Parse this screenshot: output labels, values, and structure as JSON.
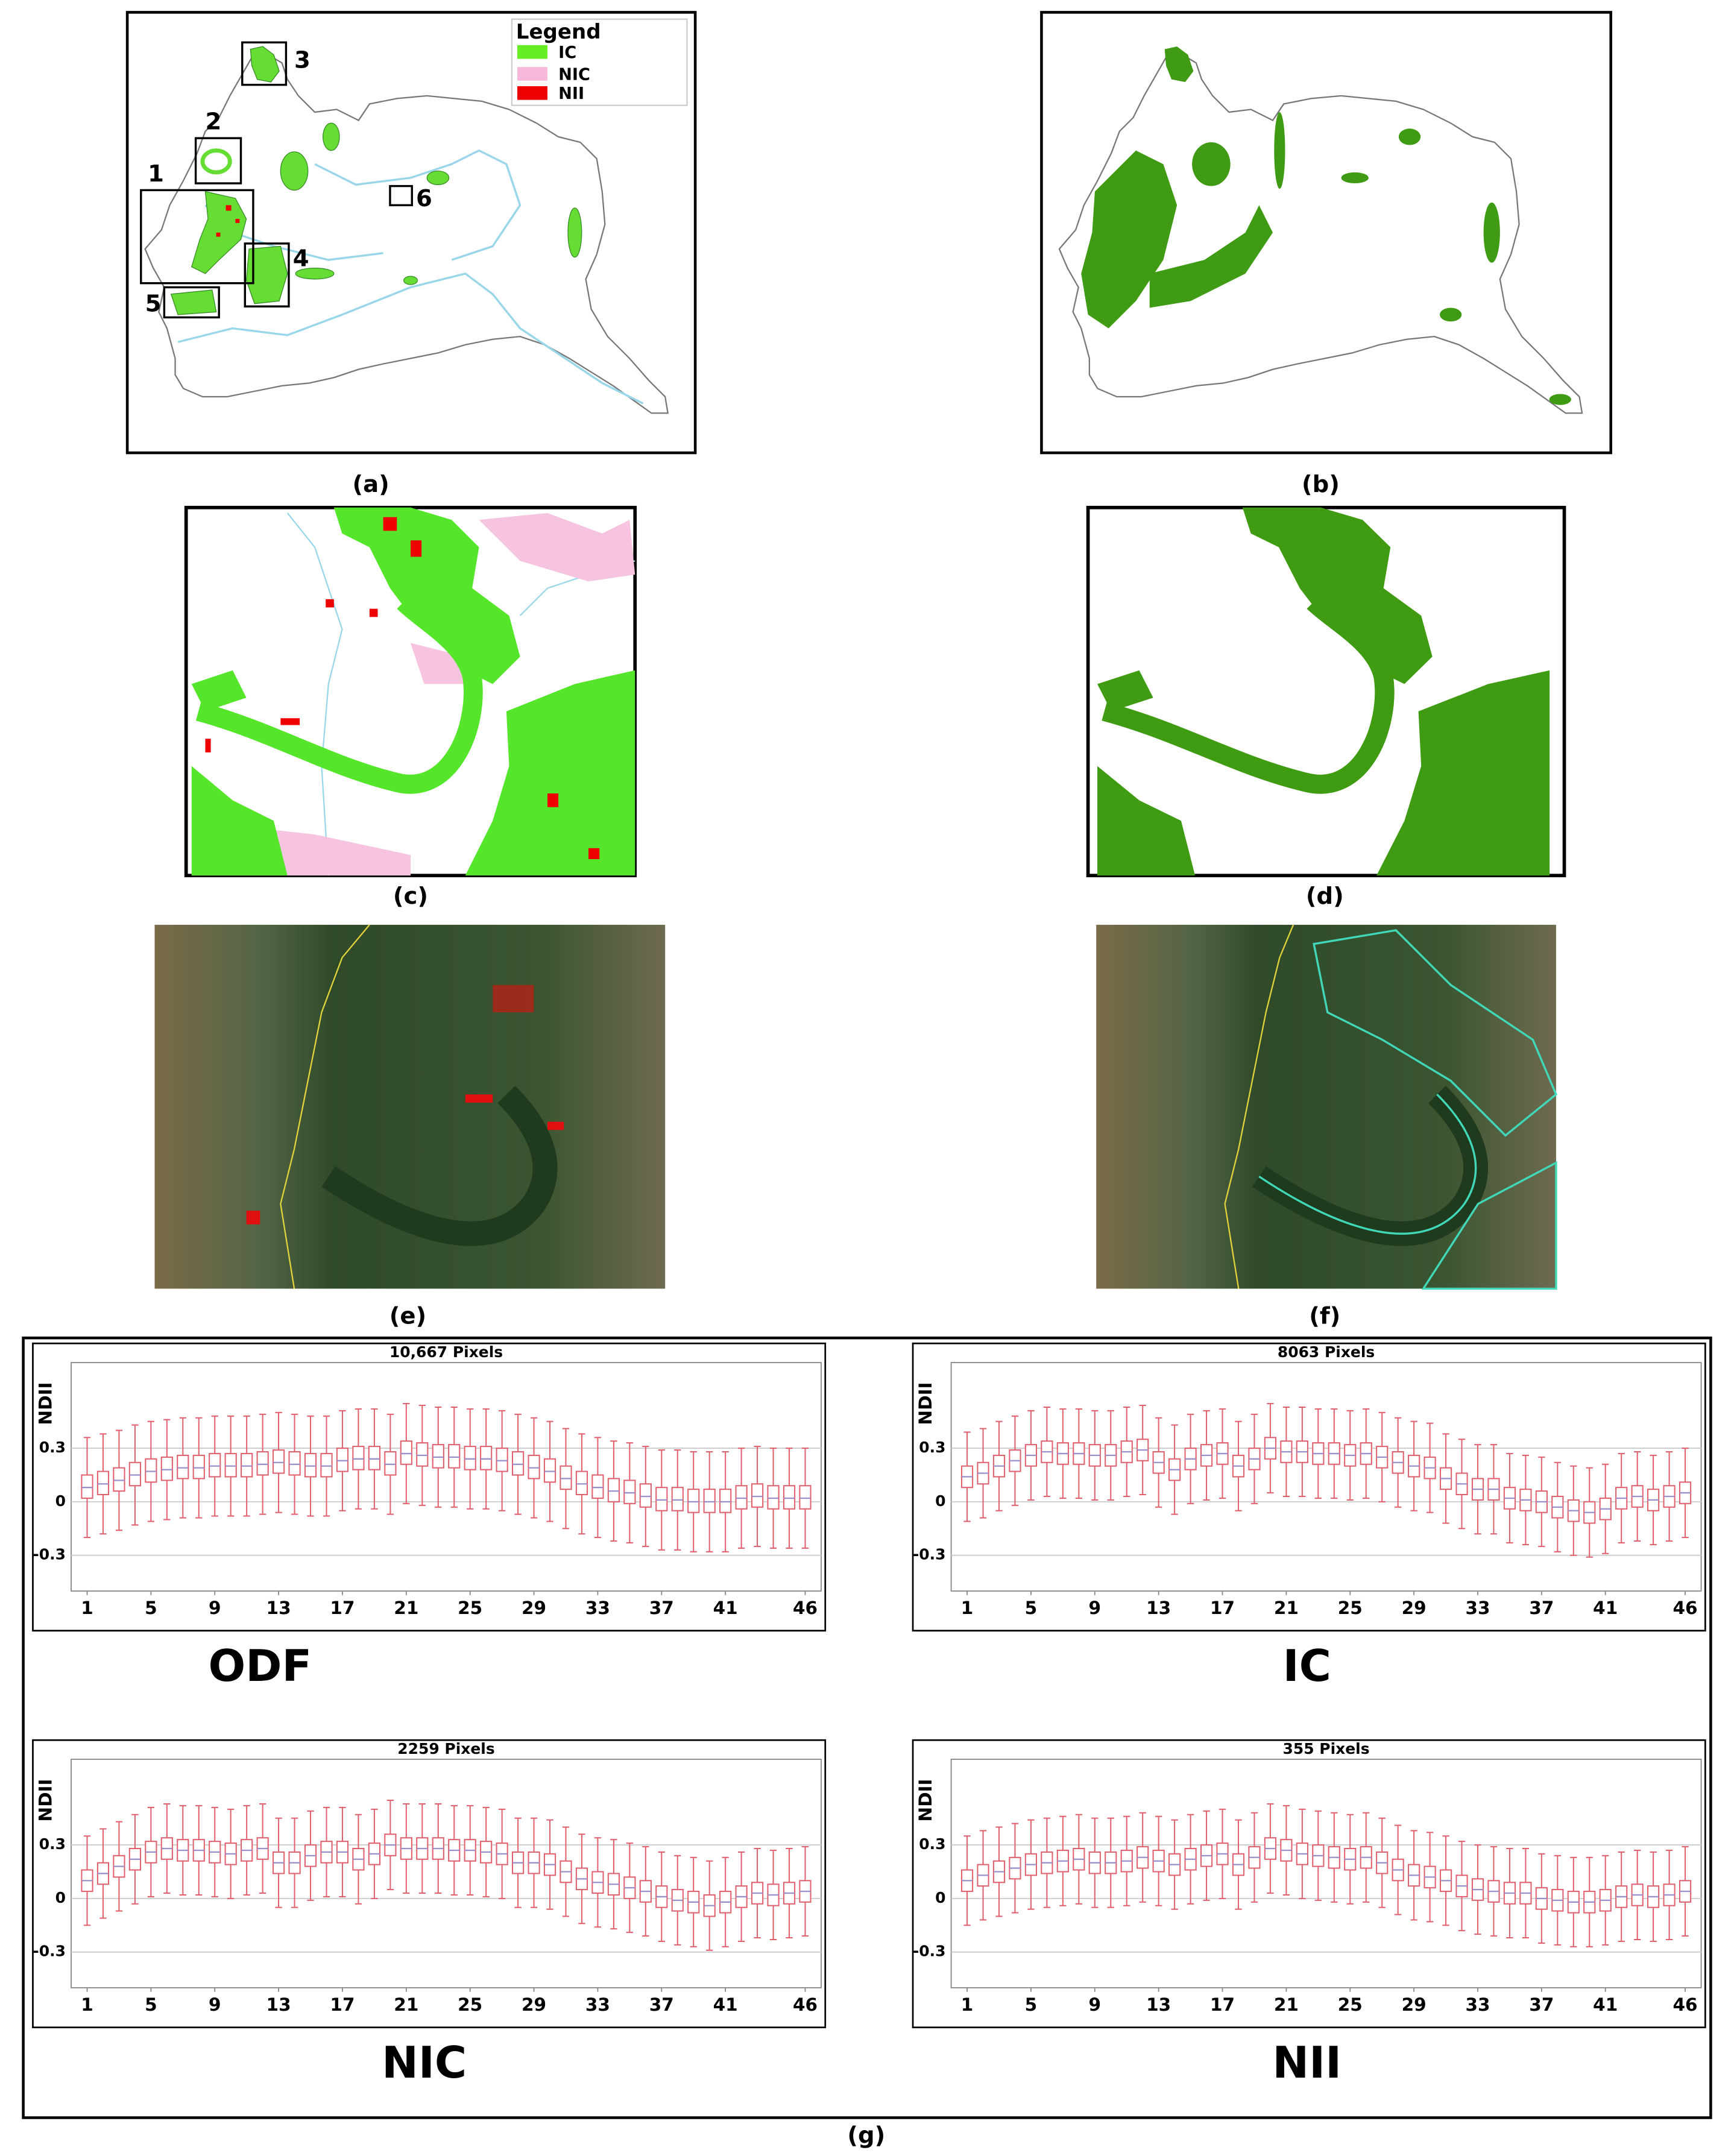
{
  "panel_labels": [
    "(a)",
    "(b)",
    "(c)",
    "(d)",
    "(e)",
    "(f)",
    "(g)"
  ],
  "map_a": {
    "legend_title": "Legend",
    "legend_items": [
      "IC",
      "NIC",
      "NII"
    ],
    "box_labels": [
      "1",
      "2",
      "3",
      "4",
      "5",
      "6"
    ]
  },
  "chart_data": [
    {
      "type": "box",
      "title": "10,667 Pixels",
      "label": "ODF",
      "ylabel": "NDII",
      "color": "#e0606e",
      "grid": true,
      "xlim": [
        0,
        47
      ],
      "ylim": [
        -0.5,
        0.78
      ],
      "xticks": [
        1,
        5,
        9,
        13,
        17,
        21,
        25,
        29,
        33,
        37,
        41,
        46
      ],
      "yticks": [
        -0.3,
        0,
        0.3
      ],
      "x": [
        1,
        2,
        3,
        4,
        5,
        6,
        7,
        8,
        9,
        10,
        11,
        12,
        13,
        14,
        15,
        16,
        17,
        18,
        19,
        20,
        21,
        22,
        23,
        24,
        25,
        26,
        27,
        28,
        29,
        30,
        31,
        32,
        33,
        34,
        35,
        36,
        37,
        38,
        39,
        40,
        41,
        42,
        43,
        44,
        45,
        46
      ],
      "whislo": [
        -0.2,
        -0.18,
        -0.16,
        -0.13,
        -0.11,
        -0.1,
        -0.09,
        -0.09,
        -0.08,
        -0.08,
        -0.08,
        -0.07,
        -0.06,
        -0.07,
        -0.08,
        -0.08,
        -0.05,
        -0.04,
        -0.04,
        -0.07,
        -0.01,
        -0.02,
        -0.03,
        -0.03,
        -0.04,
        -0.04,
        -0.05,
        -0.07,
        -0.09,
        -0.11,
        -0.15,
        -0.18,
        -0.2,
        -0.22,
        -0.23,
        -0.25,
        -0.27,
        -0.27,
        -0.28,
        -0.28,
        -0.28,
        -0.26,
        -0.25,
        -0.26,
        -0.26,
        -0.26
      ],
      "q1": [
        0.02,
        0.04,
        0.06,
        0.09,
        0.11,
        0.12,
        0.13,
        0.13,
        0.14,
        0.14,
        0.14,
        0.15,
        0.16,
        0.15,
        0.14,
        0.14,
        0.17,
        0.18,
        0.18,
        0.15,
        0.21,
        0.2,
        0.19,
        0.19,
        0.18,
        0.18,
        0.17,
        0.15,
        0.13,
        0.11,
        0.07,
        0.04,
        0.02,
        0.0,
        -0.01,
        -0.03,
        -0.05,
        -0.05,
        -0.06,
        -0.06,
        -0.06,
        -0.04,
        -0.03,
        -0.04,
        -0.04,
        -0.04
      ],
      "median": [
        0.08,
        0.1,
        0.12,
        0.15,
        0.17,
        0.18,
        0.19,
        0.19,
        0.2,
        0.2,
        0.2,
        0.21,
        0.22,
        0.21,
        0.2,
        0.2,
        0.23,
        0.24,
        0.24,
        0.21,
        0.27,
        0.26,
        0.25,
        0.25,
        0.24,
        0.24,
        0.23,
        0.21,
        0.19,
        0.17,
        0.13,
        0.1,
        0.08,
        0.06,
        0.05,
        0.03,
        0.01,
        0.01,
        0.0,
        0.0,
        0.0,
        0.02,
        0.03,
        0.02,
        0.02,
        0.02
      ],
      "q3": [
        0.15,
        0.17,
        0.19,
        0.22,
        0.24,
        0.25,
        0.26,
        0.26,
        0.27,
        0.27,
        0.27,
        0.28,
        0.29,
        0.28,
        0.27,
        0.27,
        0.3,
        0.31,
        0.31,
        0.28,
        0.34,
        0.33,
        0.32,
        0.32,
        0.31,
        0.31,
        0.3,
        0.28,
        0.26,
        0.24,
        0.2,
        0.17,
        0.15,
        0.13,
        0.12,
        0.1,
        0.08,
        0.08,
        0.07,
        0.07,
        0.07,
        0.09,
        0.1,
        0.09,
        0.09,
        0.09
      ],
      "whishi": [
        0.36,
        0.38,
        0.4,
        0.43,
        0.45,
        0.46,
        0.47,
        0.47,
        0.48,
        0.48,
        0.48,
        0.49,
        0.5,
        0.49,
        0.48,
        0.48,
        0.51,
        0.52,
        0.52,
        0.49,
        0.55,
        0.54,
        0.53,
        0.53,
        0.52,
        0.52,
        0.51,
        0.49,
        0.47,
        0.45,
        0.41,
        0.38,
        0.36,
        0.34,
        0.33,
        0.31,
        0.29,
        0.29,
        0.28,
        0.28,
        0.28,
        0.3,
        0.31,
        0.3,
        0.3,
        0.3
      ]
    },
    {
      "type": "box",
      "title": "8063 Pixels",
      "label": "IC",
      "ylabel": "NDII",
      "color": "#e0606e",
      "grid": true,
      "xlim": [
        0,
        47
      ],
      "ylim": [
        -0.5,
        0.78
      ],
      "xticks": [
        1,
        5,
        9,
        13,
        17,
        21,
        25,
        29,
        33,
        37,
        41,
        46
      ],
      "yticks": [
        -0.3,
        0,
        0.3
      ],
      "x": [
        1,
        2,
        3,
        4,
        5,
        6,
        7,
        8,
        9,
        10,
        11,
        12,
        13,
        14,
        15,
        16,
        17,
        18,
        19,
        20,
        21,
        22,
        23,
        24,
        25,
        26,
        27,
        28,
        29,
        30,
        31,
        32,
        33,
        34,
        35,
        36,
        37,
        38,
        39,
        40,
        41,
        42,
        43,
        44,
        45,
        46
      ],
      "whislo": [
        -0.11,
        -0.09,
        -0.05,
        -0.02,
        0.01,
        0.03,
        0.02,
        0.02,
        0.01,
        0.01,
        0.03,
        0.04,
        -0.03,
        -0.07,
        -0.01,
        0.01,
        0.02,
        -0.05,
        -0.01,
        0.05,
        0.03,
        0.03,
        0.02,
        0.02,
        0.01,
        0.02,
        0.0,
        -0.03,
        -0.05,
        -0.06,
        -0.12,
        -0.15,
        -0.18,
        -0.18,
        -0.23,
        -0.24,
        -0.25,
        -0.28,
        -0.3,
        -0.31,
        -0.29,
        -0.23,
        -0.22,
        -0.24,
        -0.22,
        -0.2
      ],
      "q1": [
        0.08,
        0.1,
        0.14,
        0.17,
        0.2,
        0.22,
        0.21,
        0.21,
        0.2,
        0.2,
        0.22,
        0.23,
        0.16,
        0.12,
        0.18,
        0.2,
        0.21,
        0.14,
        0.18,
        0.24,
        0.22,
        0.22,
        0.21,
        0.21,
        0.2,
        0.21,
        0.19,
        0.16,
        0.14,
        0.13,
        0.07,
        0.04,
        0.01,
        0.01,
        -0.04,
        -0.05,
        -0.06,
        -0.09,
        -0.11,
        -0.12,
        -0.1,
        -0.04,
        -0.03,
        -0.05,
        -0.03,
        -0.01
      ],
      "median": [
        0.14,
        0.16,
        0.2,
        0.23,
        0.26,
        0.28,
        0.27,
        0.27,
        0.26,
        0.26,
        0.28,
        0.29,
        0.22,
        0.18,
        0.24,
        0.26,
        0.27,
        0.2,
        0.24,
        0.3,
        0.28,
        0.28,
        0.27,
        0.27,
        0.26,
        0.27,
        0.25,
        0.22,
        0.2,
        0.19,
        0.13,
        0.1,
        0.07,
        0.07,
        0.02,
        0.01,
        0.0,
        -0.03,
        -0.05,
        -0.06,
        -0.04,
        0.02,
        0.03,
        0.01,
        0.03,
        0.05
      ],
      "q3": [
        0.2,
        0.22,
        0.26,
        0.29,
        0.32,
        0.34,
        0.33,
        0.33,
        0.32,
        0.32,
        0.34,
        0.35,
        0.28,
        0.24,
        0.3,
        0.32,
        0.33,
        0.26,
        0.3,
        0.36,
        0.34,
        0.34,
        0.33,
        0.33,
        0.32,
        0.33,
        0.31,
        0.28,
        0.26,
        0.25,
        0.19,
        0.16,
        0.13,
        0.13,
        0.08,
        0.07,
        0.06,
        0.03,
        0.01,
        0.0,
        0.02,
        0.08,
        0.09,
        0.07,
        0.09,
        0.11
      ],
      "whishi": [
        0.39,
        0.41,
        0.45,
        0.48,
        0.51,
        0.53,
        0.52,
        0.52,
        0.51,
        0.51,
        0.53,
        0.54,
        0.47,
        0.43,
        0.49,
        0.51,
        0.52,
        0.45,
        0.49,
        0.55,
        0.53,
        0.53,
        0.52,
        0.52,
        0.51,
        0.52,
        0.5,
        0.47,
        0.45,
        0.44,
        0.38,
        0.35,
        0.32,
        0.32,
        0.27,
        0.26,
        0.25,
        0.22,
        0.2,
        0.19,
        0.21,
        0.27,
        0.28,
        0.26,
        0.28,
        0.3
      ]
    },
    {
      "type": "box",
      "title": "2259 Pixels",
      "label": "NIC",
      "ylabel": "NDII",
      "color": "#e0606e",
      "grid": true,
      "xlim": [
        0,
        47
      ],
      "ylim": [
        -0.5,
        0.78
      ],
      "xticks": [
        1,
        5,
        9,
        13,
        17,
        21,
        25,
        29,
        33,
        37,
        41,
        46
      ],
      "yticks": [
        -0.3,
        0,
        0.3
      ],
      "x": [
        1,
        2,
        3,
        4,
        5,
        6,
        7,
        8,
        9,
        10,
        11,
        12,
        13,
        14,
        15,
        16,
        17,
        18,
        19,
        20,
        21,
        22,
        23,
        24,
        25,
        26,
        27,
        28,
        29,
        30,
        31,
        32,
        33,
        34,
        35,
        36,
        37,
        38,
        39,
        40,
        41,
        42,
        43,
        44,
        45,
        46
      ],
      "whislo": [
        -0.15,
        -0.11,
        -0.07,
        -0.03,
        0.01,
        0.03,
        0.02,
        0.02,
        0.01,
        0.0,
        0.02,
        0.03,
        -0.05,
        -0.05,
        -0.01,
        0.01,
        0.01,
        -0.03,
        0.0,
        0.05,
        0.03,
        0.03,
        0.03,
        0.02,
        0.02,
        0.01,
        0.0,
        -0.05,
        -0.05,
        -0.06,
        -0.1,
        -0.14,
        -0.16,
        -0.17,
        -0.19,
        -0.21,
        -0.24,
        -0.26,
        -0.27,
        -0.29,
        -0.27,
        -0.24,
        -0.22,
        -0.23,
        -0.22,
        -0.21
      ],
      "q1": [
        0.04,
        0.08,
        0.12,
        0.16,
        0.2,
        0.22,
        0.21,
        0.21,
        0.2,
        0.19,
        0.21,
        0.22,
        0.14,
        0.14,
        0.18,
        0.2,
        0.2,
        0.16,
        0.19,
        0.24,
        0.22,
        0.22,
        0.22,
        0.21,
        0.21,
        0.2,
        0.19,
        0.14,
        0.14,
        0.13,
        0.09,
        0.05,
        0.03,
        0.02,
        0.0,
        -0.02,
        -0.05,
        -0.07,
        -0.08,
        -0.1,
        -0.08,
        -0.05,
        -0.03,
        -0.04,
        -0.03,
        -0.02
      ],
      "median": [
        0.1,
        0.14,
        0.18,
        0.22,
        0.26,
        0.28,
        0.27,
        0.27,
        0.26,
        0.25,
        0.27,
        0.28,
        0.2,
        0.2,
        0.24,
        0.26,
        0.26,
        0.22,
        0.25,
        0.3,
        0.28,
        0.28,
        0.28,
        0.27,
        0.27,
        0.26,
        0.25,
        0.2,
        0.2,
        0.19,
        0.15,
        0.11,
        0.09,
        0.08,
        0.06,
        0.04,
        0.01,
        -0.01,
        -0.02,
        -0.04,
        -0.02,
        0.01,
        0.03,
        0.02,
        0.03,
        0.04
      ],
      "q3": [
        0.16,
        0.2,
        0.24,
        0.28,
        0.32,
        0.34,
        0.33,
        0.33,
        0.32,
        0.31,
        0.33,
        0.34,
        0.26,
        0.26,
        0.3,
        0.32,
        0.32,
        0.28,
        0.31,
        0.36,
        0.34,
        0.34,
        0.34,
        0.33,
        0.33,
        0.32,
        0.31,
        0.26,
        0.26,
        0.25,
        0.21,
        0.17,
        0.15,
        0.14,
        0.12,
        0.1,
        0.07,
        0.05,
        0.04,
        0.02,
        0.04,
        0.07,
        0.09,
        0.08,
        0.09,
        0.1
      ],
      "whishi": [
        0.35,
        0.39,
        0.43,
        0.47,
        0.51,
        0.53,
        0.52,
        0.52,
        0.51,
        0.5,
        0.52,
        0.53,
        0.45,
        0.45,
        0.49,
        0.51,
        0.51,
        0.47,
        0.5,
        0.55,
        0.53,
        0.53,
        0.53,
        0.52,
        0.52,
        0.51,
        0.5,
        0.45,
        0.45,
        0.44,
        0.4,
        0.36,
        0.34,
        0.33,
        0.31,
        0.29,
        0.26,
        0.24,
        0.23,
        0.21,
        0.23,
        0.26,
        0.28,
        0.27,
        0.28,
        0.29
      ]
    },
    {
      "type": "box",
      "title": "355 Pixels",
      "label": "NII",
      "ylabel": "NDII",
      "color": "#e0606e",
      "grid": true,
      "xlim": [
        0,
        47
      ],
      "ylim": [
        -0.5,
        0.78
      ],
      "xticks": [
        1,
        5,
        9,
        13,
        17,
        21,
        25,
        29,
        33,
        37,
        41,
        46
      ],
      "yticks": [
        -0.3,
        0,
        0.3
      ],
      "x": [
        1,
        2,
        3,
        4,
        5,
        6,
        7,
        8,
        9,
        10,
        11,
        12,
        13,
        14,
        15,
        16,
        17,
        18,
        19,
        20,
        21,
        22,
        23,
        24,
        25,
        26,
        27,
        28,
        29,
        30,
        31,
        32,
        33,
        34,
        35,
        36,
        37,
        38,
        39,
        40,
        41,
        42,
        43,
        44,
        45,
        46
      ],
      "whislo": [
        -0.15,
        -0.12,
        -0.1,
        -0.08,
        -0.06,
        -0.05,
        -0.04,
        -0.03,
        -0.05,
        -0.05,
        -0.04,
        -0.02,
        -0.04,
        -0.06,
        -0.03,
        -0.01,
        0.0,
        -0.06,
        -0.02,
        0.03,
        0.02,
        0.0,
        -0.01,
        -0.02,
        -0.03,
        -0.02,
        -0.05,
        -0.09,
        -0.12,
        -0.13,
        -0.15,
        -0.18,
        -0.2,
        -0.21,
        -0.22,
        -0.22,
        -0.25,
        -0.26,
        -0.27,
        -0.27,
        -0.26,
        -0.24,
        -0.23,
        -0.24,
        -0.23,
        -0.21
      ],
      "q1": [
        0.04,
        0.07,
        0.09,
        0.11,
        0.13,
        0.14,
        0.15,
        0.16,
        0.14,
        0.14,
        0.15,
        0.17,
        0.15,
        0.13,
        0.16,
        0.18,
        0.19,
        0.13,
        0.17,
        0.22,
        0.21,
        0.19,
        0.18,
        0.17,
        0.16,
        0.17,
        0.14,
        0.1,
        0.07,
        0.06,
        0.04,
        0.01,
        -0.01,
        -0.02,
        -0.03,
        -0.03,
        -0.06,
        -0.07,
        -0.08,
        -0.08,
        -0.07,
        -0.05,
        -0.04,
        -0.05,
        -0.04,
        -0.02
      ],
      "median": [
        0.1,
        0.13,
        0.15,
        0.17,
        0.19,
        0.2,
        0.21,
        0.22,
        0.2,
        0.2,
        0.21,
        0.23,
        0.21,
        0.19,
        0.22,
        0.24,
        0.25,
        0.19,
        0.23,
        0.28,
        0.27,
        0.25,
        0.24,
        0.23,
        0.22,
        0.23,
        0.2,
        0.16,
        0.13,
        0.12,
        0.1,
        0.07,
        0.05,
        0.04,
        0.03,
        0.03,
        0.0,
        -0.01,
        -0.02,
        -0.02,
        -0.01,
        0.01,
        0.02,
        0.01,
        0.02,
        0.04
      ],
      "q3": [
        0.16,
        0.19,
        0.21,
        0.23,
        0.25,
        0.26,
        0.27,
        0.28,
        0.26,
        0.26,
        0.27,
        0.29,
        0.27,
        0.25,
        0.28,
        0.3,
        0.31,
        0.25,
        0.29,
        0.34,
        0.33,
        0.31,
        0.3,
        0.29,
        0.28,
        0.29,
        0.26,
        0.22,
        0.19,
        0.18,
        0.16,
        0.13,
        0.11,
        0.1,
        0.09,
        0.09,
        0.06,
        0.05,
        0.04,
        0.04,
        0.05,
        0.07,
        0.08,
        0.07,
        0.08,
        0.1
      ],
      "whishi": [
        0.35,
        0.38,
        0.4,
        0.42,
        0.44,
        0.45,
        0.46,
        0.47,
        0.45,
        0.45,
        0.46,
        0.48,
        0.46,
        0.44,
        0.47,
        0.49,
        0.5,
        0.44,
        0.48,
        0.53,
        0.52,
        0.5,
        0.49,
        0.48,
        0.47,
        0.48,
        0.45,
        0.41,
        0.38,
        0.37,
        0.35,
        0.32,
        0.3,
        0.29,
        0.28,
        0.28,
        0.25,
        0.24,
        0.23,
        0.23,
        0.24,
        0.26,
        0.27,
        0.26,
        0.27,
        0.29
      ]
    }
  ]
}
